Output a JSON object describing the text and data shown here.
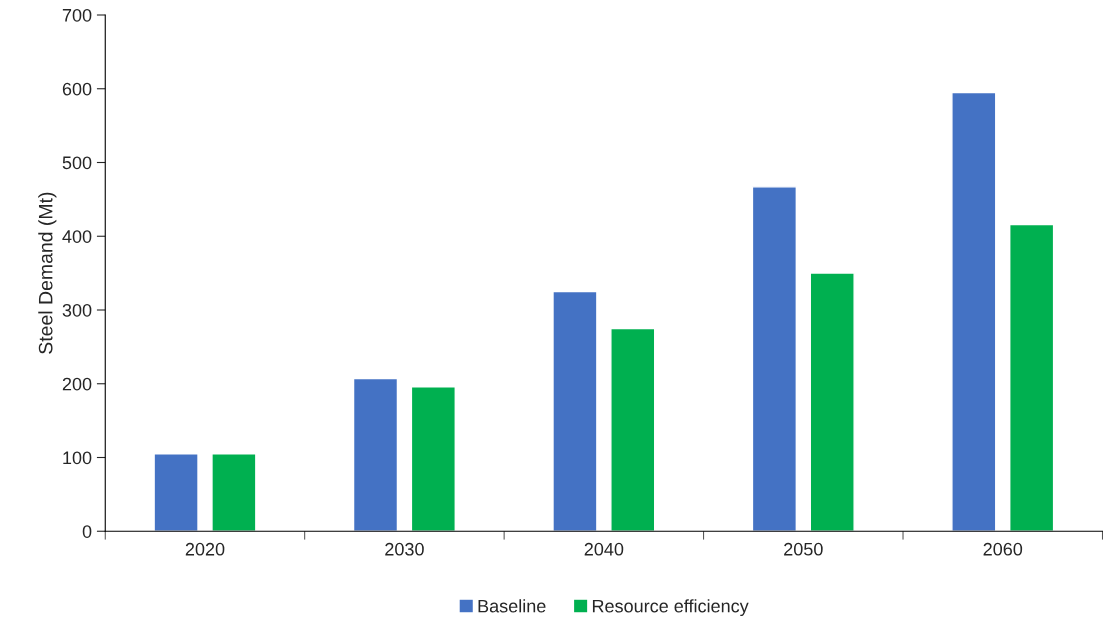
{
  "chart_data": {
    "type": "bar",
    "ylabel": "Steel Demand (Mt)",
    "categories": [
      "2020",
      "2030",
      "2040",
      "2050",
      "2060"
    ],
    "series": [
      {
        "name": "Baseline",
        "color": "#4472c4",
        "values": [
          105,
          207,
          325,
          467,
          595
        ]
      },
      {
        "name": "Resource efficiency",
        "color": "#00b050",
        "values": [
          105,
          196,
          275,
          350,
          416
        ]
      }
    ],
    "ylim": [
      0,
      700
    ],
    "yticks": [
      0,
      100,
      200,
      300,
      400,
      500,
      600,
      700
    ],
    "grid": false,
    "legend": "bottom"
  }
}
